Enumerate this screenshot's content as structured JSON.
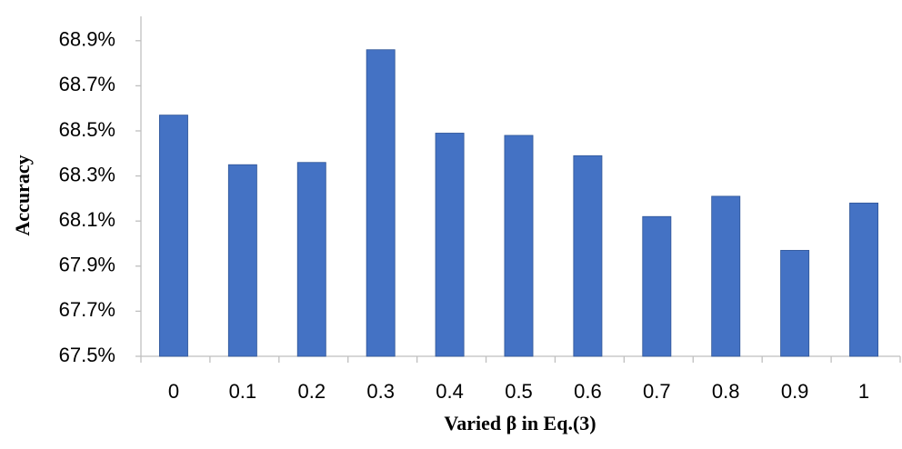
{
  "chart_data": {
    "type": "bar",
    "xlabel": "Varied β in Eq.(3)",
    "ylabel": "Accuracy",
    "categories": [
      "0",
      "0.1",
      "0.2",
      "0.3",
      "0.4",
      "0.5",
      "0.6",
      "0.7",
      "0.8",
      "0.9",
      "1"
    ],
    "values": [
      68.57,
      68.35,
      68.36,
      68.86,
      68.49,
      68.48,
      68.39,
      68.12,
      68.21,
      67.97,
      68.18
    ],
    "color": "#4472c4",
    "ylim": [
      67.5,
      69.0
    ],
    "yticks": [
      {
        "value": 67.5,
        "label": "67.5%"
      },
      {
        "value": 67.7,
        "label": "67.7%"
      },
      {
        "value": 67.9,
        "label": "67.9%"
      },
      {
        "value": 68.1,
        "label": "68.1%"
      },
      {
        "value": 68.3,
        "label": "68.3%"
      },
      {
        "value": 68.5,
        "label": "68.5%"
      },
      {
        "value": 68.7,
        "label": "68.7%"
      },
      {
        "value": 68.9,
        "label": "68.9%"
      }
    ],
    "grid": false
  }
}
